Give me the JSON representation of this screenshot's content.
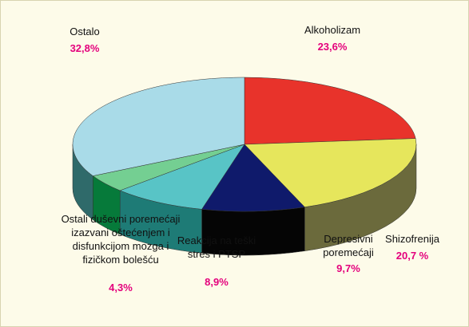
{
  "chart_data": {
    "type": "pie3d",
    "categories": [
      "Alkoholizam",
      "Shizofrenija",
      "Depresivni poremećaji",
      "Reakcija na teški stres i PTSP",
      "Ostali duševni poremećaji izazvani oštećenjem i disfunkcijom mozga i fizičkom bolešću",
      "Ostalo"
    ],
    "values": [
      23.6,
      20.7,
      9.7,
      8.9,
      4.3,
      32.8
    ],
    "value_labels": [
      "23,6%",
      "20,7 %",
      "9,7%",
      "8,9%",
      "4,3%",
      "32,8%"
    ],
    "colors": [
      "#e8332b",
      "#e6e65c",
      "#0f1a6b",
      "#58c4c6",
      "#74cf92",
      "#a9dbe8"
    ],
    "side_colors": [
      "#9a1f1a",
      "#6b6a3c",
      "#050505",
      "#1e7b76",
      "#067a3a",
      "#2f6a6a"
    ]
  }
}
